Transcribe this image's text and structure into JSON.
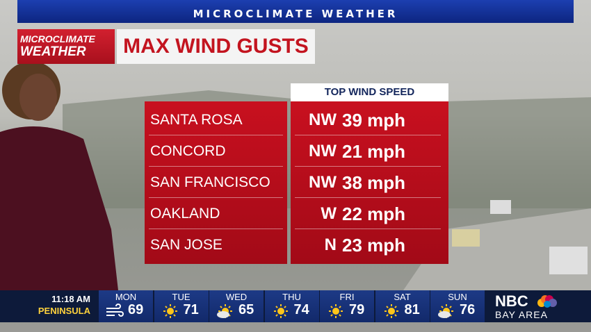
{
  "banner": "MICROCLIMATE WEATHER",
  "logo": {
    "line1": "MICROCLIMATE",
    "line2": "WEATHER"
  },
  "title": "MAX WIND GUSTS",
  "table": {
    "header": "TOP WIND SPEED",
    "rows": [
      [
        "SANTA ROSA",
        "NW",
        "39 mph"
      ],
      [
        "CONCORD",
        "NW",
        "21 mph"
      ],
      [
        "SAN FRANCISCO",
        "NW",
        "38 mph"
      ],
      [
        "OAKLAND",
        "W",
        "22 mph"
      ],
      [
        "SAN JOSE",
        "N",
        "23 mph"
      ]
    ]
  },
  "ticker": {
    "time": "11:18 AM",
    "location": "PENINSULA",
    "days": [
      {
        "day": "MON",
        "temp": 69
      },
      {
        "day": "TUE",
        "temp": 71
      },
      {
        "day": "WED",
        "temp": 65
      },
      {
        "day": "THU",
        "temp": 74
      },
      {
        "day": "FRI",
        "temp": 79
      },
      {
        "day": "SAT",
        "temp": 81
      },
      {
        "day": "SUN",
        "temp": 76
      }
    ]
  },
  "network": {
    "name": "NBC",
    "region": "BAY AREA"
  }
}
